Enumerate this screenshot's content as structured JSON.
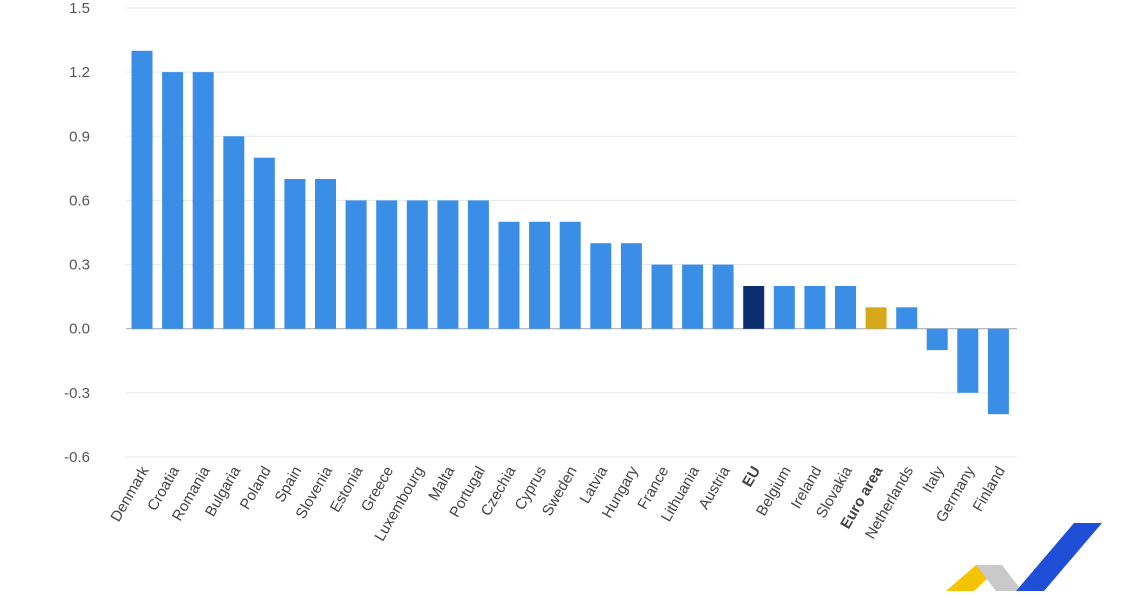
{
  "chart_data": {
    "type": "bar",
    "categories": [
      "Denmark",
      "Croatia",
      "Romania",
      "Bulgaria",
      "Poland",
      "Spain",
      "Slovenia",
      "Estonia",
      "Greece",
      "Luxembourg",
      "Malta",
      "Portugal",
      "Czechia",
      "Cyprus",
      "Sweden",
      "Latvia",
      "Hungary",
      "France",
      "Lithuania",
      "Austria",
      "EU",
      "Belgium",
      "Ireland",
      "Slovakia",
      "Euro area",
      "Netherlands",
      "Italy",
      "Germany",
      "Finland"
    ],
    "values": [
      1.3,
      1.2,
      1.2,
      0.9,
      0.8,
      0.7,
      0.7,
      0.6,
      0.6,
      0.6,
      0.6,
      0.6,
      0.5,
      0.5,
      0.5,
      0.4,
      0.4,
      0.3,
      0.3,
      0.3,
      0.2,
      0.2,
      0.2,
      0.2,
      0.1,
      0.1,
      -0.1,
      -0.3,
      -0.4
    ],
    "highlight": {
      "EU": "#0b2f6e",
      "Euro area": "#d6a91a"
    },
    "bold_categories": [
      "EU",
      "Euro area"
    ],
    "bar_color": "#3b8ee6",
    "yticks": [
      "1.5",
      "1.2",
      "0.9",
      "0.6",
      "0.3",
      "0.0",
      "-0.3",
      "-0.6"
    ],
    "ylim": [
      -0.6,
      1.5
    ],
    "grid": true,
    "title": "",
    "xlabel": "",
    "ylabel": ""
  },
  "logo": {
    "name": "eurostat-logo",
    "colors": [
      "#f5c400",
      "#c9c9c9",
      "#1f4fd6"
    ]
  }
}
